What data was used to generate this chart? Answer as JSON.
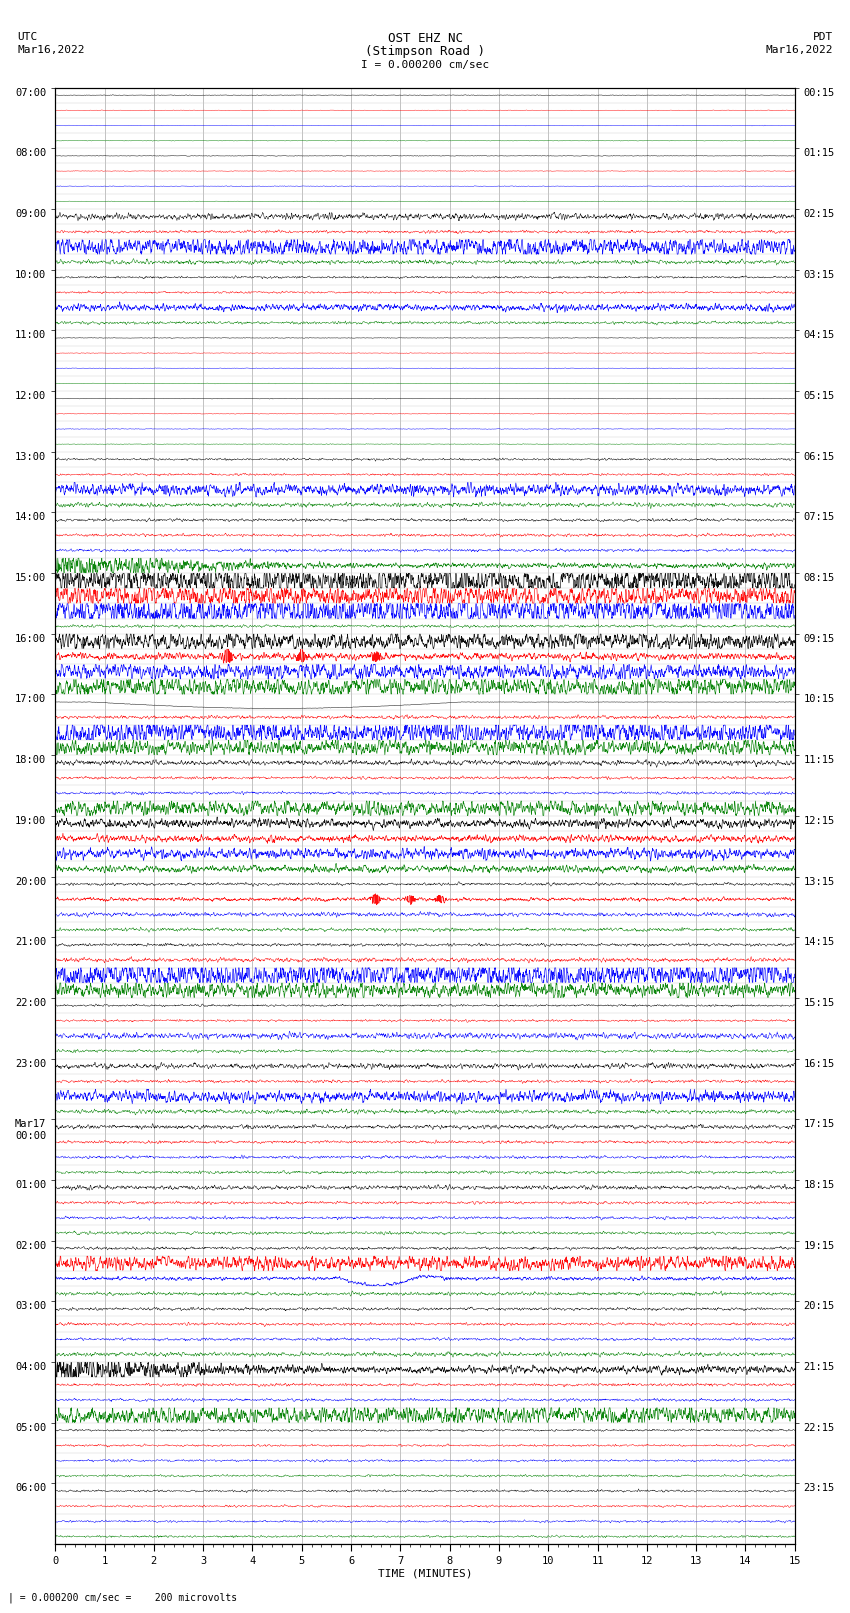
{
  "title_line1": "OST EHZ NC",
  "title_line2": "(Stimpson Road )",
  "title_scale": "I = 0.000200 cm/sec",
  "left_header_line1": "UTC",
  "left_header_line2": "Mar16,2022",
  "right_header_line1": "PDT",
  "right_header_line2": "Mar16,2022",
  "bottom_label": "TIME (MINUTES)",
  "bottom_note": "| = 0.000200 cm/sec =    200 microvolts",
  "utc_labels": [
    "07:00",
    "",
    "",
    "",
    "08:00",
    "",
    "",
    "",
    "09:00",
    "",
    "",
    "",
    "10:00",
    "",
    "",
    "",
    "11:00",
    "",
    "",
    "",
    "12:00",
    "",
    "",
    "",
    "13:00",
    "",
    "",
    "",
    "14:00",
    "",
    "",
    "",
    "15:00",
    "",
    "",
    "",
    "16:00",
    "",
    "",
    "",
    "17:00",
    "",
    "",
    "",
    "18:00",
    "",
    "",
    "",
    "19:00",
    "",
    "",
    "",
    "20:00",
    "",
    "",
    "",
    "21:00",
    "",
    "",
    "",
    "22:00",
    "",
    "",
    "",
    "23:00",
    "",
    "",
    "",
    "Mar17\n00:00",
    "",
    "",
    "",
    "01:00",
    "",
    "",
    "",
    "02:00",
    "",
    "",
    "",
    "03:00",
    "",
    "",
    "",
    "04:00",
    "",
    "",
    "",
    "05:00",
    "",
    "",
    "",
    "06:00",
    "",
    "",
    ""
  ],
  "pdt_labels": [
    "00:15",
    "",
    "",
    "",
    "01:15",
    "",
    "",
    "",
    "02:15",
    "",
    "",
    "",
    "03:15",
    "",
    "",
    "",
    "04:15",
    "",
    "",
    "",
    "05:15",
    "",
    "",
    "",
    "06:15",
    "",
    "",
    "",
    "07:15",
    "",
    "",
    "",
    "08:15",
    "",
    "",
    "",
    "09:15",
    "",
    "",
    "",
    "10:15",
    "",
    "",
    "",
    "11:15",
    "",
    "",
    "",
    "12:15",
    "",
    "",
    "",
    "13:15",
    "",
    "",
    "",
    "14:15",
    "",
    "",
    "",
    "15:15",
    "",
    "",
    "",
    "16:15",
    "",
    "",
    "",
    "17:15",
    "",
    "",
    "",
    "18:15",
    "",
    "",
    "",
    "19:15",
    "",
    "",
    "",
    "20:15",
    "",
    "",
    "",
    "21:15",
    "",
    "",
    "",
    "22:15",
    "",
    "",
    "",
    "23:15",
    "",
    "",
    ""
  ],
  "n_rows": 96,
  "n_cols": 2700,
  "xmin": 0,
  "xmax": 15,
  "bg_color": "#ffffff",
  "grid_vert_color": "#888888",
  "grid_horiz_color": "#888888",
  "row_colors": [
    "black",
    "red",
    "blue",
    "green"
  ],
  "noise_seed": 42,
  "base_amp": 0.055,
  "figsize": [
    8.5,
    16.13
  ],
  "dpi": 100
}
